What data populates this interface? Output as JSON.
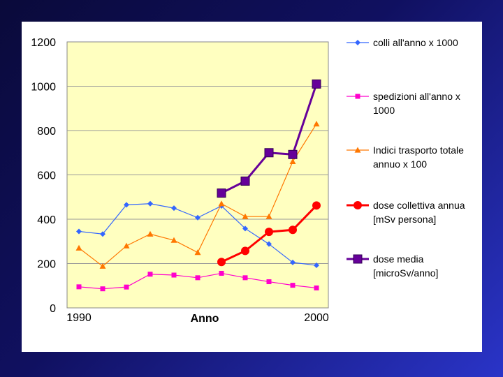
{
  "chart_data": {
    "type": "line",
    "title": "",
    "xlabel": "Anno",
    "ylabel": "",
    "xlim": [
      1990,
      2000
    ],
    "ylim": [
      0,
      1200
    ],
    "y_ticks": [
      0,
      200,
      400,
      600,
      800,
      1000,
      1200
    ],
    "x_tick_labels": [
      {
        "x": 1990,
        "label": "1990"
      },
      {
        "x": 2000,
        "label": "2000"
      }
    ],
    "grid": "horizontal",
    "plot_background": "#FFFFC0",
    "legend_position": "right",
    "series": [
      {
        "name": "colli all'anno x 1000",
        "color": "#3366FF",
        "marker": "diamond",
        "x": [
          1990,
          1991,
          1992,
          1993,
          1994,
          1995,
          1996,
          1997,
          1998,
          1999,
          2000
        ],
        "values": [
          345,
          333,
          465,
          470,
          450,
          407,
          460,
          358,
          288,
          205,
          192
        ]
      },
      {
        "name": "spedizioni all'anno x 1000",
        "color": "#FF00CC",
        "marker": "square",
        "x": [
          1990,
          1991,
          1992,
          1993,
          1994,
          1995,
          1996,
          1997,
          1998,
          1999,
          2000
        ],
        "values": [
          95,
          86,
          94,
          152,
          148,
          136,
          156,
          136,
          118,
          102,
          90
        ]
      },
      {
        "name": "Indici trasporto totale annuo x 100",
        "color": "#FF7700",
        "marker": "triangle",
        "x": [
          1990,
          1991,
          1992,
          1993,
          1994,
          1995,
          1996,
          1997,
          1998,
          1999,
          2000
        ],
        "values": [
          270,
          188,
          280,
          333,
          305,
          250,
          470,
          412,
          412,
          660,
          830
        ]
      },
      {
        "name": "dose collettiva annua [mSv persona]",
        "color": "#FF0000",
        "marker": "circle",
        "x": [
          1996,
          1997,
          1998,
          1999,
          2000
        ],
        "values": [
          207,
          257,
          343,
          352,
          462
        ]
      },
      {
        "name": "dose media [microSv/anno]",
        "color": "#660099",
        "marker": "square",
        "x": [
          1996,
          1997,
          1998,
          1999,
          2000
        ],
        "values": [
          518,
          572,
          700,
          692,
          1010
        ]
      }
    ]
  },
  "legend": {
    "items": [
      {
        "lines": [
          "colli all'anno x 1000"
        ]
      },
      {
        "lines": [
          "spedizioni all'anno x",
          "1000"
        ]
      },
      {
        "lines": [
          "Indici trasporto totale",
          "annuo x 100"
        ]
      },
      {
        "lines": [
          "dose collettiva annua",
          "[mSv persona]"
        ]
      },
      {
        "lines": [
          "dose media",
          "[microSv/anno]"
        ]
      }
    ]
  }
}
